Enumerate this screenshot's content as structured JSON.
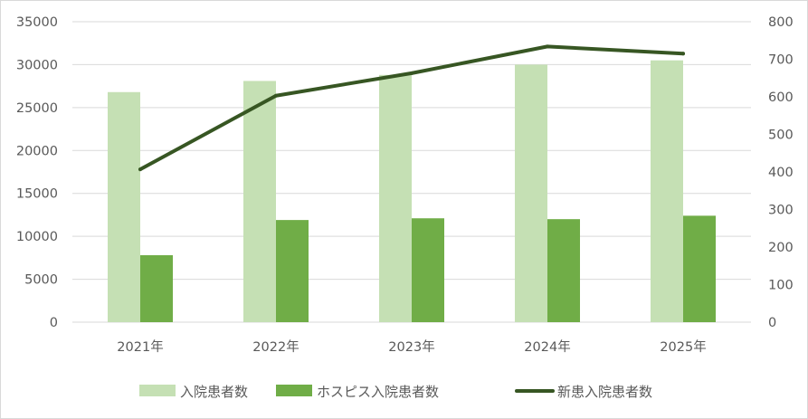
{
  "chart_data": {
    "type": "bar",
    "categories": [
      "2021年",
      "2022年",
      "2023年",
      "2024年",
      "2025年"
    ],
    "title": "",
    "xlabel": "",
    "ylabel": "",
    "ylim": [
      0,
      35000
    ],
    "y2lim": [
      0,
      800
    ],
    "yticks": [
      "0",
      "5000",
      "10000",
      "15000",
      "20000",
      "25000",
      "30000",
      "35000"
    ],
    "y2ticks": [
      "0",
      "100",
      "200",
      "300",
      "400",
      "500",
      "600",
      "700",
      "800"
    ],
    "grid": true,
    "legend_position": "bottom",
    "series": [
      {
        "name": "入院患者数",
        "type": "bar",
        "axis": "left",
        "color": "#c5e0b4",
        "values": [
          26800,
          28100,
          28800,
          30000,
          30500
        ]
      },
      {
        "name": "ホスピス入院患者数",
        "type": "bar",
        "axis": "left",
        "color": "#70ad47",
        "values": [
          7800,
          11900,
          12100,
          12000,
          12400
        ]
      },
      {
        "name": "新患入院患者数",
        "type": "line",
        "axis": "right",
        "color": "#375623",
        "values": [
          407,
          603,
          663,
          734,
          715
        ]
      }
    ]
  }
}
